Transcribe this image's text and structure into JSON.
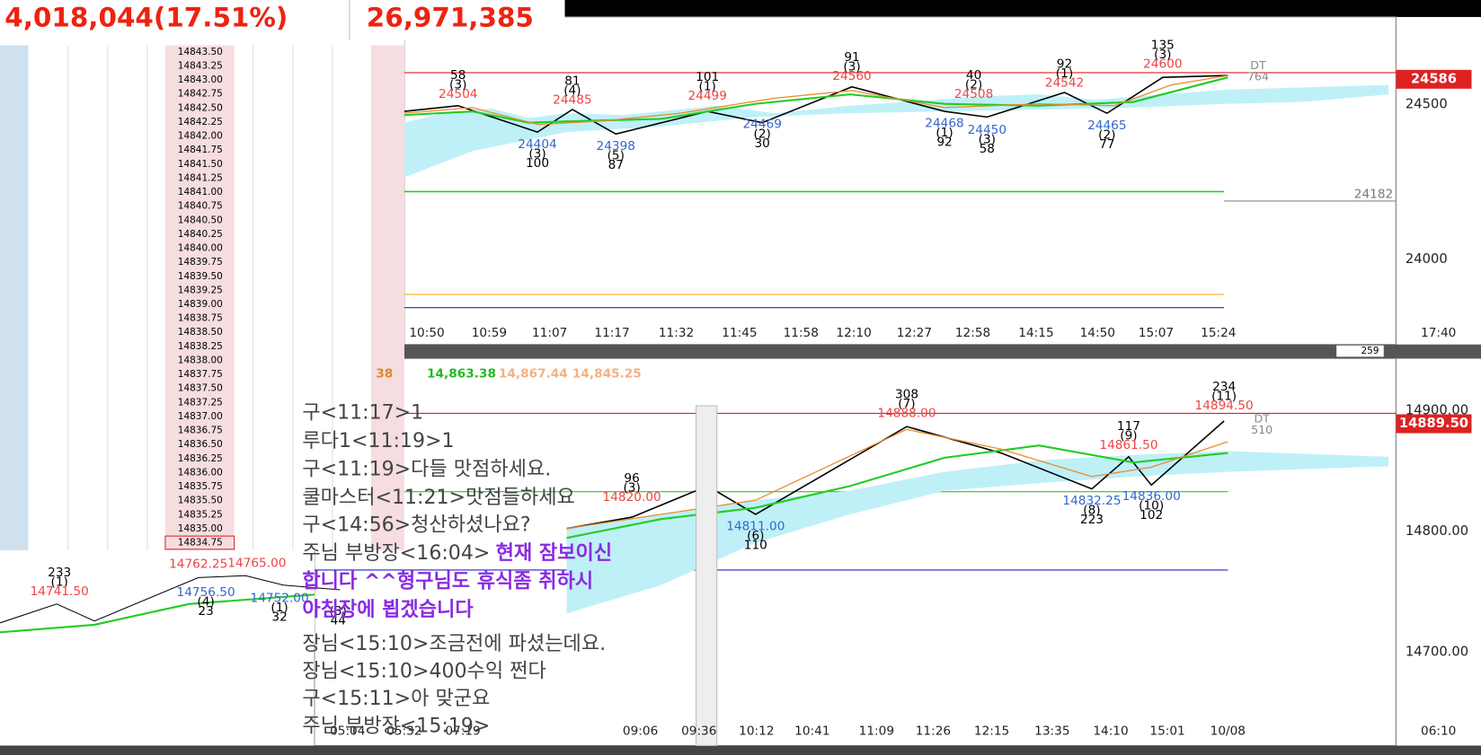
{
  "header": {
    "left": "4,018,044(17.51%)",
    "right": "26,971,385"
  },
  "ladder": [
    "14843.50",
    "14843.25",
    "14843.00",
    "14842.75",
    "14842.50",
    "14842.25",
    "14842.00",
    "14841.75",
    "14841.50",
    "14841.25",
    "14841.00",
    "14840.75",
    "14840.50",
    "14840.25",
    "14840.00",
    "14839.75",
    "14839.50",
    "14839.25",
    "14839.00",
    "14838.75",
    "14838.50",
    "14838.25",
    "14838.00",
    "14837.75",
    "14837.50",
    "14837.25",
    "14837.00",
    "14836.75",
    "14836.50",
    "14836.25",
    "14836.00",
    "14835.75",
    "14835.50",
    "14835.25",
    "14835.00",
    "14834.75"
  ],
  "top_chart": {
    "yaxis": [
      "24500",
      "24000"
    ],
    "price_tag": "24586",
    "side_label": "24182",
    "dt": [
      "DT",
      "764"
    ],
    "times": [
      "10:50",
      "10:59",
      "11:07",
      "11:17",
      "11:32",
      "11:45",
      "11:58",
      "12:10",
      "12:27",
      "12:58",
      "14:15",
      "14:50",
      "15:07",
      "15:24"
    ],
    "time_right": "17:40",
    "zoom": "259",
    "annotations": [
      [
        "58",
        "(3)",
        "24504"
      ],
      [
        "81",
        "(4)",
        "24485"
      ],
      [
        "101",
        "(1)",
        "24499"
      ],
      [
        "91",
        "(3)",
        "24560"
      ],
      [
        "40",
        "(2)",
        "24508"
      ],
      [
        "92",
        "(1)",
        "24542"
      ],
      [
        "135",
        "(3)",
        "24600"
      ],
      [
        "24404",
        "(3)",
        "100"
      ],
      [
        "24398",
        "(5)",
        "87"
      ],
      [
        "24469",
        "(2)",
        "30"
      ],
      [
        "24468",
        "(1)",
        "92"
      ],
      [
        "24450",
        "(3)",
        "58"
      ],
      [
        "24465",
        "(2)",
        "77"
      ]
    ]
  },
  "bottom_chart": {
    "legend": [
      "38",
      "14,863.38",
      "14,867.44",
      "14,845.25"
    ],
    "yaxis": [
      "14900.00",
      "14800.00",
      "14700.00"
    ],
    "price_tag": "14889.50",
    "dt": [
      "DT",
      "510"
    ],
    "times": [
      "05:04",
      "05:32",
      "07:19",
      "09:06",
      "09:36",
      "10:12",
      "10:41",
      "11:09",
      "11:26",
      "12:15",
      "13:35",
      "14:10",
      "15:01",
      "10/08"
    ],
    "time_right": "06:10",
    "annotations": [
      [
        "308",
        "(7)",
        "14888.00"
      ],
      [
        "117",
        "(9)",
        "14861.50"
      ],
      [
        "234",
        "(11)",
        "14894.50"
      ],
      [
        "14832.25",
        "(8)",
        "223"
      ],
      [
        "14836.00",
        "(10)",
        "102"
      ],
      [
        "14811.00",
        "(6)",
        "110"
      ],
      [
        "96",
        "(3)",
        "14820.00"
      ]
    ]
  },
  "mini_chart": {
    "annotations": [
      [
        "233",
        "(1)",
        "14741.50"
      ],
      [
        "14762.25"
      ],
      [
        "14765.00"
      ],
      [
        "14756.50",
        "(4)",
        "23"
      ],
      [
        "14752.00",
        "(1)",
        "32"
      ],
      [
        "(3)",
        "44"
      ]
    ]
  },
  "chat": [
    {
      "text": "구<11:17>1"
    },
    {
      "text": "루다1<11:19>1"
    },
    {
      "text": "구<11:19>다들 맛점하세요."
    },
    {
      "text": "쿨마스터<11:21>맛점들하세요"
    },
    {
      "text": "구<14:56>청산하셨나요?"
    },
    {
      "text": "주님 부방장<16:04>",
      "highlight": "현재 잠보이신"
    },
    {
      "highlight": "합니다 ^^형구님도 휴식좀 취하시"
    },
    {
      "highlight": "아침장에 뵙겠습니다"
    },
    {
      "text": "장님<15:10>조금전에 파셨는데요."
    },
    {
      "text": "장님<15:10>400수익 쩐다"
    },
    {
      "text": "구<15:11>아 맞군요"
    },
    {
      "text": "주님 부방장<15:19>"
    }
  ]
}
